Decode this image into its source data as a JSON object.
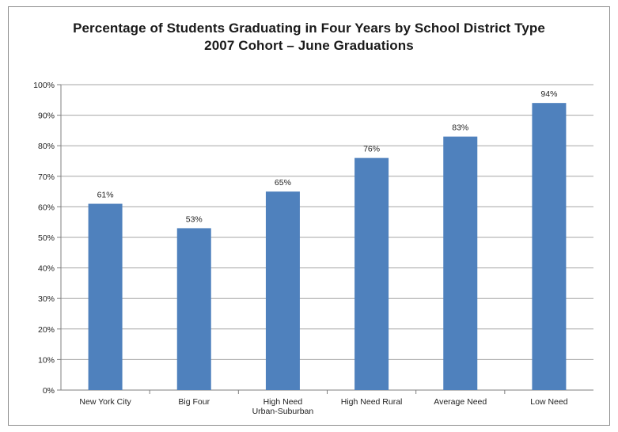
{
  "chart_data": {
    "type": "bar",
    "title": "Percentage of Students Graduating in Four Years by School District Type",
    "subtitle": "2007 Cohort – June Graduations",
    "categories": [
      [
        "New York City"
      ],
      [
        "Big Four"
      ],
      [
        "High Need",
        "Urban-Suburban"
      ],
      [
        "High Need Rural"
      ],
      [
        "Average Need"
      ],
      [
        "Low Need"
      ]
    ],
    "values": [
      61,
      53,
      65,
      76,
      83,
      94
    ],
    "data_labels": [
      "61%",
      "53%",
      "65%",
      "76%",
      "83%",
      "94%"
    ],
    "ylim": [
      0,
      100
    ],
    "yticks": [
      0,
      10,
      20,
      30,
      40,
      50,
      60,
      70,
      80,
      90,
      100
    ],
    "ytick_labels": [
      "0%",
      "10%",
      "20%",
      "30%",
      "40%",
      "50%",
      "60%",
      "70%",
      "80%",
      "90%",
      "100%"
    ],
    "xlabel": "",
    "ylabel": "",
    "grid": true,
    "legend": false,
    "bar_color": "#4f81bd",
    "grid_color": "#a6a6a6"
  }
}
